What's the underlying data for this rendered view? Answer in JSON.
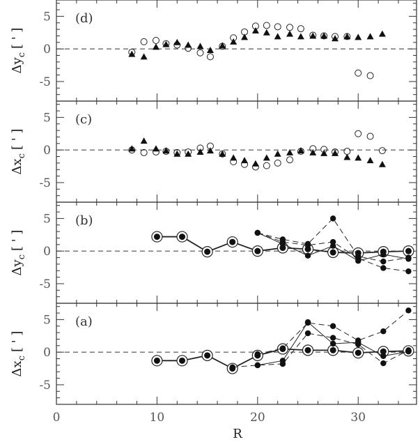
{
  "chart_data": {
    "type": "scatter",
    "xlabel": "R",
    "xlim": [
      0,
      35.8
    ],
    "xticks": [
      0,
      10,
      20,
      30
    ],
    "ylim": [
      -8,
      7.5
    ],
    "yticks": [
      -5,
      0,
      5
    ],
    "panels": [
      {
        "label": "(d)",
        "ylabel_main": "Δy",
        "ylabel_sub": "c",
        "ylabel_unit": "[ ' ]",
        "series": [
          {
            "marker": "open-circle",
            "x": [
              7.5,
              8.7,
              9.9,
              10.9,
              12.0,
              13.1,
              14.3,
              15.3,
              16.5,
              17.6,
              18.7,
              19.8,
              20.9,
              22.0,
              23.2,
              24.3,
              25.5,
              26.6,
              27.7,
              28.9,
              30.0,
              31.2
            ],
            "y": [
              -0.5,
              1.1,
              1.3,
              0.8,
              0.6,
              0.1,
              -0.6,
              -1.2,
              0.4,
              1.7,
              2.6,
              3.5,
              3.6,
              3.4,
              3.3,
              3.1,
              2.1,
              2.0,
              1.9,
              1.9,
              -3.7,
              -4.1
            ]
          },
          {
            "marker": "filled-triangle",
            "x": [
              7.5,
              8.7,
              9.9,
              10.9,
              12.0,
              13.1,
              14.3,
              15.3,
              16.5,
              17.6,
              18.7,
              19.8,
              20.9,
              22.0,
              23.2,
              24.3,
              25.5,
              26.6,
              27.7,
              28.9,
              30.0,
              31.2,
              32.4
            ],
            "y": [
              -0.8,
              -1.2,
              0.3,
              0.7,
              1.0,
              0.6,
              0.4,
              -0.2,
              0.5,
              1.1,
              1.8,
              2.8,
              2.5,
              1.9,
              2.3,
              1.9,
              2.0,
              2.0,
              1.6,
              1.9,
              1.8,
              1.9,
              2.3
            ]
          }
        ]
      },
      {
        "label": "(c)",
        "ylabel_main": "Δx",
        "ylabel_sub": "c",
        "ylabel_unit": "[ ' ]",
        "series": [
          {
            "marker": "open-circle",
            "x": [
              7.5,
              8.7,
              9.9,
              10.9,
              12.0,
              13.1,
              14.3,
              15.3,
              16.5,
              17.6,
              18.7,
              19.8,
              20.9,
              22.0,
              23.2,
              24.3,
              25.5,
              26.6,
              27.7,
              28.9,
              30.0,
              31.2,
              32.4
            ],
            "y": [
              0.0,
              -0.4,
              -0.3,
              -0.2,
              -0.4,
              -0.3,
              0.3,
              0.6,
              -0.6,
              -1.8,
              -2.2,
              -2.6,
              -2.4,
              -2.0,
              -1.5,
              -0.2,
              0.2,
              0.1,
              -0.3,
              -0.2,
              2.5,
              2.1,
              -0.1
            ]
          },
          {
            "marker": "filled-triangle",
            "x": [
              7.5,
              8.7,
              9.9,
              10.9,
              12.0,
              13.1,
              14.3,
              15.3,
              16.5,
              17.6,
              18.7,
              19.8,
              20.9,
              22.0,
              23.2,
              24.3,
              25.5,
              26.6,
              27.7,
              28.9,
              30.0,
              31.2,
              32.4
            ],
            "y": [
              0.2,
              1.4,
              0.2,
              -0.1,
              -0.6,
              -0.6,
              -0.3,
              -0.1,
              -0.6,
              -1.2,
              -1.6,
              -2.1,
              -1.2,
              -0.6,
              -0.4,
              -0.1,
              -0.4,
              -0.5,
              -0.5,
              -1.1,
              -1.2,
              -1.6,
              -2.2
            ]
          }
        ]
      },
      {
        "label": "(b)",
        "ylabel_main": "Δy",
        "ylabel_sub": "c",
        "ylabel_unit": "[ ' ]",
        "series": [
          {
            "marker": "filled-circle-ring",
            "line": "solid-thick",
            "x": [
              10.0,
              12.5,
              15.0,
              17.5,
              20.0,
              22.5,
              25.0,
              27.5,
              30.0,
              32.5,
              35.0
            ],
            "y": [
              2.2,
              2.2,
              -0.1,
              1.4,
              0.0,
              0.5,
              0.3,
              -0.2,
              -0.3,
              -0.1,
              0.0
            ]
          },
          {
            "marker": "filled-circle",
            "line": "dashed",
            "x": [
              20.0,
              22.5,
              25.0,
              27.5,
              30.0,
              32.5,
              35.0
            ],
            "y": [
              2.8,
              1.8,
              1.1,
              5.0,
              -0.8,
              -1.6,
              -1.0
            ]
          },
          {
            "marker": "filled-circle",
            "line": "dashed",
            "x": [
              20.0,
              22.5,
              25.0,
              27.5,
              30.0,
              32.5,
              35.0
            ],
            "y": [
              2.8,
              1.4,
              0.9,
              1.4,
              -1.1,
              -2.6,
              -3.1
            ]
          },
          {
            "marker": "filled-circle",
            "line": "solid-thin",
            "x": [
              20.0,
              22.5,
              25.0,
              27.5,
              30.0,
              32.5,
              35.0
            ],
            "y": [
              2.8,
              1.1,
              -0.7,
              0.8,
              -1.5,
              -0.5,
              -1.2
            ]
          }
        ]
      },
      {
        "label": "(a)",
        "ylabel_main": "Δx",
        "ylabel_sub": "c",
        "ylabel_unit": "[ ' ]",
        "series": [
          {
            "marker": "filled-circle-ring",
            "line": "solid-thick",
            "x": [
              10.0,
              12.5,
              15.0,
              17.5,
              20.0,
              22.5,
              25.0,
              27.5,
              30.0,
              32.5,
              35.0
            ],
            "y": [
              -1.3,
              -1.3,
              -0.5,
              -2.5,
              -0.5,
              0.5,
              0.3,
              0.3,
              -0.1,
              0.1,
              0.2
            ]
          },
          {
            "marker": "filled-circle",
            "line": "dashed",
            "x": [
              20.0,
              22.5,
              25.0,
              27.5,
              30.0,
              32.5,
              35.0
            ],
            "y": [
              -0.3,
              0.6,
              4.5,
              4.0,
              1.8,
              3.2,
              6.4
            ]
          },
          {
            "marker": "filled-circle",
            "line": "dashed",
            "x": [
              17.5,
              20.0,
              22.5,
              25.0,
              27.5,
              30.0,
              32.5,
              35.0
            ],
            "y": [
              -2.3,
              -2.0,
              -1.8,
              2.9,
              2.2,
              1.2,
              -1.7,
              0.3
            ]
          },
          {
            "marker": "filled-circle",
            "line": "solid-thin",
            "x": [
              20.0,
              22.5,
              25.0,
              27.5,
              30.0,
              32.5,
              35.0
            ],
            "y": [
              -2.0,
              -1.3,
              4.6,
              1.3,
              1.5,
              -0.6,
              0.1
            ]
          }
        ]
      }
    ]
  }
}
